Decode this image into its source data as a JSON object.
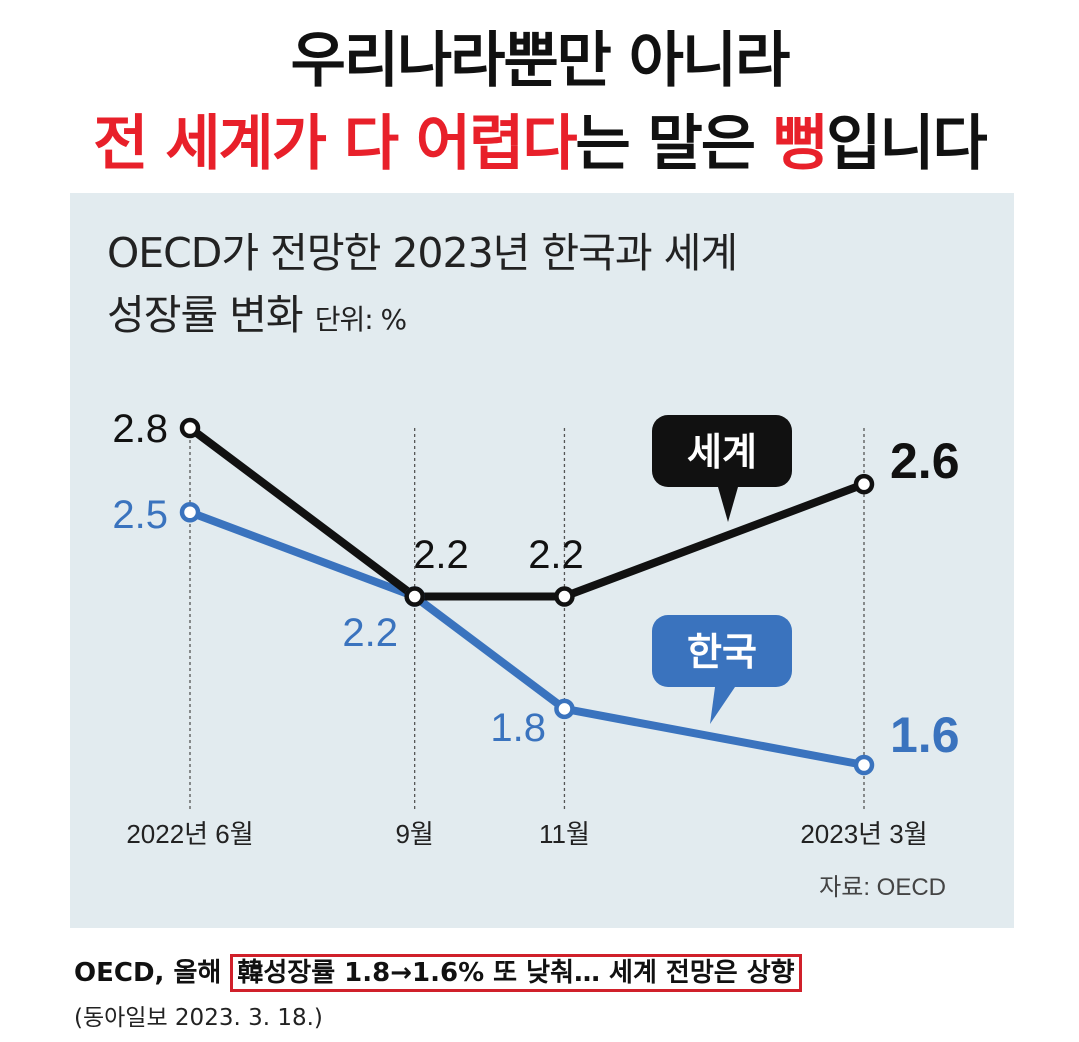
{
  "headline": {
    "line1": "우리나라뿐만 아니라",
    "line2_red1": "전 세계가 다 어렵다",
    "line2_black1": "는 말은 ",
    "line2_red2": "뻥",
    "line2_black2": "입니다"
  },
  "chart_data": {
    "type": "line",
    "title_line1": "OECD가 전망한 2023년 한국과 세계",
    "title_line2": "성장률 변화",
    "unit": "단위: %",
    "categories": [
      "2022년 6월",
      "9월",
      "11월",
      "2023년 3월"
    ],
    "x": [
      6,
      9,
      11,
      15
    ],
    "series": [
      {
        "name": "세계",
        "values": [
          2.8,
          2.2,
          2.2,
          2.6
        ],
        "labels": [
          "2.8",
          "2.2",
          "2.2",
          "2.6"
        ],
        "color": "#111111"
      },
      {
        "name": "한국",
        "values": [
          2.5,
          2.2,
          1.8,
          1.6
        ],
        "labels": [
          "2.5",
          "2.2",
          "1.8",
          "1.6"
        ],
        "color": "#3a73be"
      }
    ],
    "source": "자료: OECD",
    "background": "#e2ebef"
  },
  "caption": {
    "prefix": "OECD, 올해 ",
    "boxed": "韓성장률 1.8→1.6% 또 낮춰… 세계 전망은 상향",
    "source": "(동아일보 2023. 3. 18.)"
  }
}
